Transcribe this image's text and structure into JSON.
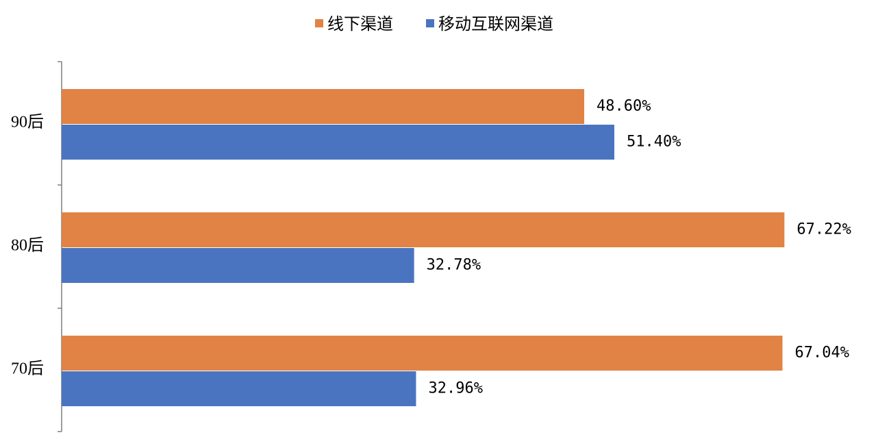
{
  "chart_data": {
    "type": "bar",
    "orientation": "horizontal",
    "categories": [
      "90后",
      "80后",
      "70后"
    ],
    "series": [
      {
        "name": "线下渠道",
        "values": [
          48.6,
          67.22,
          67.04
        ],
        "labels": [
          "48.60%",
          "67.22%",
          "67.04%"
        ],
        "color": "#E08344"
      },
      {
        "name": "移动互联网渠道",
        "values": [
          51.4,
          32.78,
          32.96
        ],
        "labels": [
          "51.40%",
          "32.78%",
          "32.96%"
        ],
        "color": "#4B74C0"
      }
    ],
    "xlim": [
      0,
      80
    ],
    "grid": false,
    "legend": "top-center"
  }
}
